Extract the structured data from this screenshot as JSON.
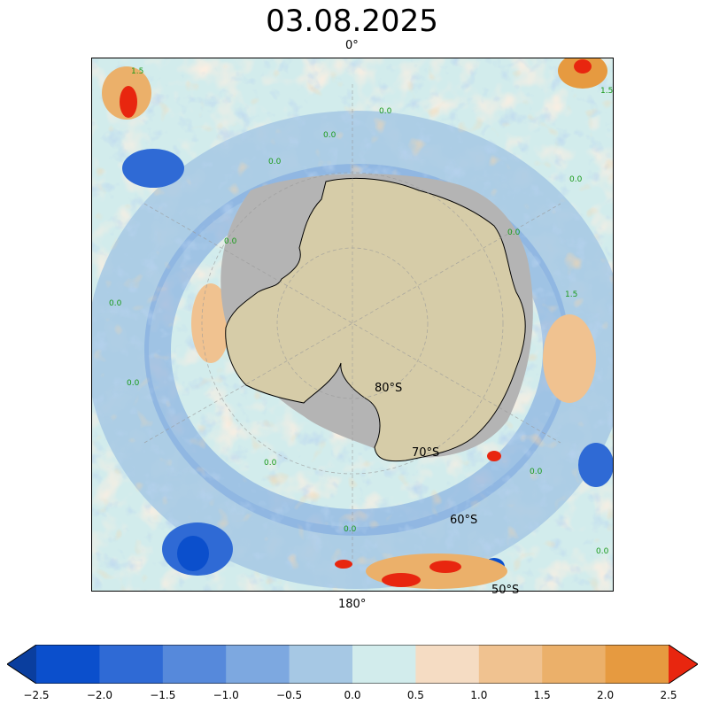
{
  "title": "03.08.2025",
  "map": {
    "projection": "south-polar-stereographic",
    "top_longitude_label": "0°",
    "bottom_longitude_label": "180°",
    "latitude_labels": [
      "80°S",
      "70°S",
      "60°S",
      "50°S"
    ],
    "contour_labels": [
      "0.0",
      "1.5"
    ],
    "land_color": "#d6cca8",
    "ice_shelf_color": "#b4b4b4"
  },
  "colorbar": {
    "ticks": [
      "−2.5",
      "−2.0",
      "−1.5",
      "−1.0",
      "−0.5",
      "0.0",
      "0.5",
      "1.0",
      "1.5",
      "2.0",
      "2.5"
    ],
    "colors": [
      "#0a3e9e",
      "#0b4fcc",
      "#2f6ad5",
      "#5689db",
      "#7da8e0",
      "#a6c8e4",
      "#d2ecec",
      "#f5dcc3",
      "#f0c290",
      "#ebb06a",
      "#e69a40",
      "#e8260f"
    ],
    "extend": "both"
  }
}
